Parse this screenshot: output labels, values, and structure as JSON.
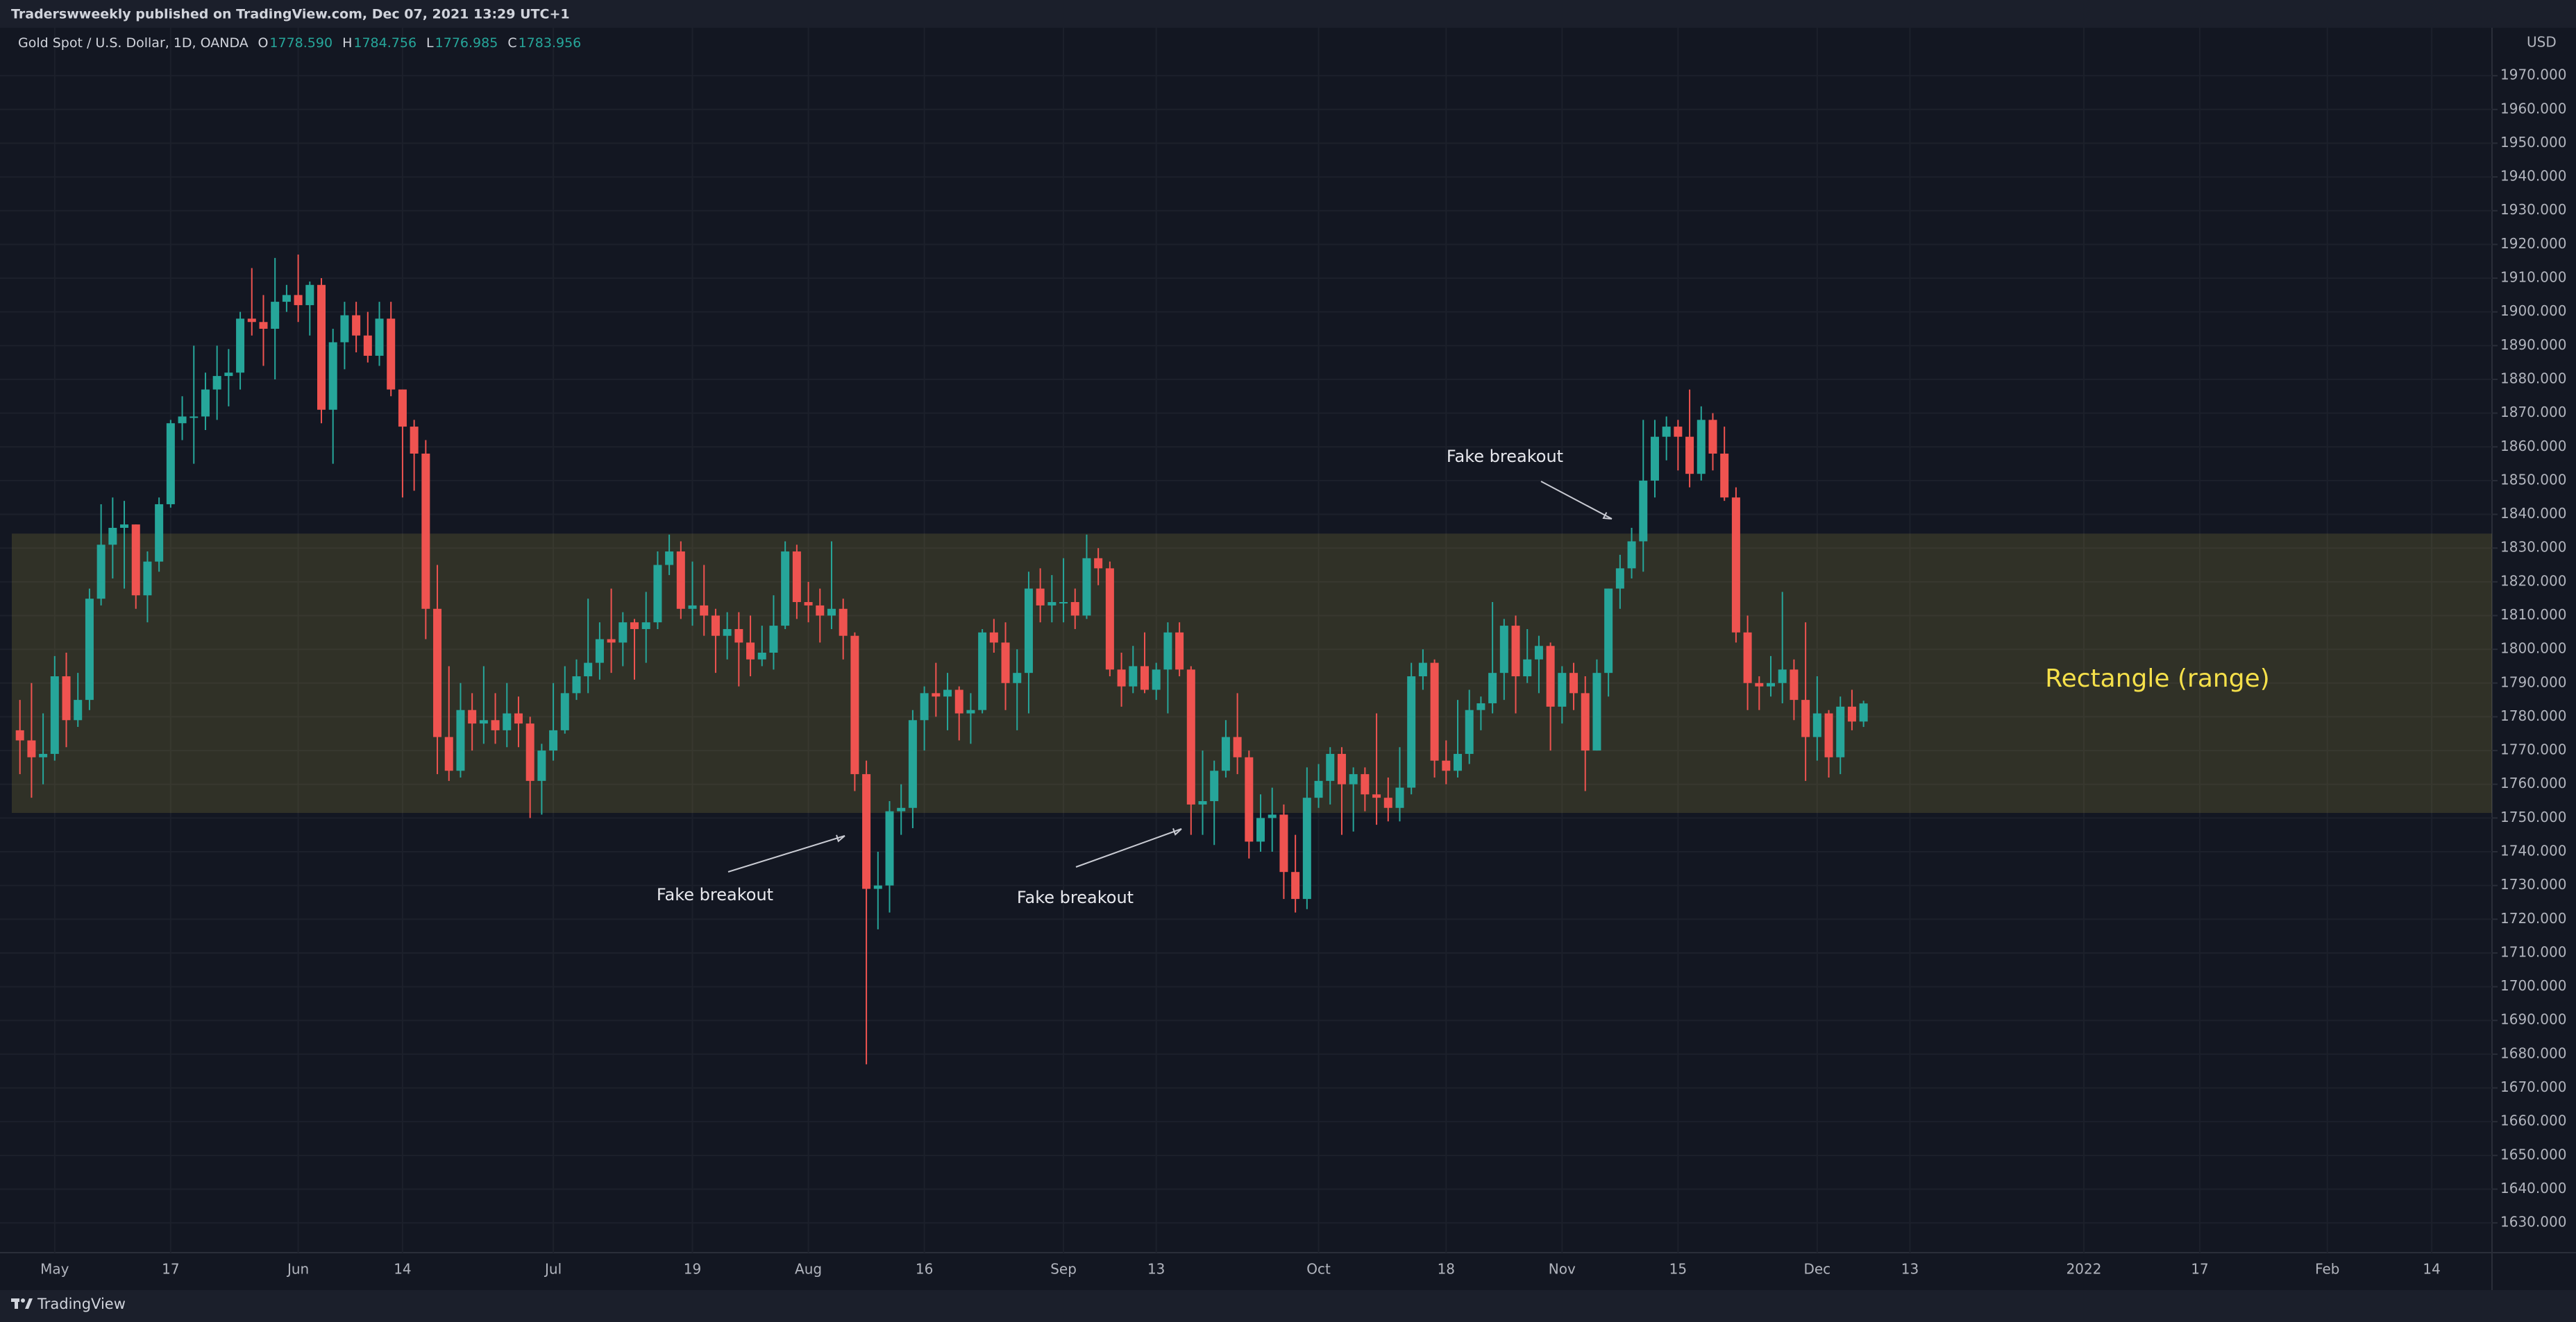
{
  "header": {
    "publisher": "Traderswweekly published on TradingView.com, Dec 07, 2021 13:29 UTC+1"
  },
  "chart_data": {
    "type": "candlestick",
    "title": "Gold Spot / U.S. Dollar, 1D, OANDA",
    "legend": {
      "o": "O",
      "open": "1778.590",
      "h": "H",
      "high": "1784.756",
      "l": "L",
      "low": "1776.985",
      "c": "C",
      "close": "1783.956"
    },
    "currency": "USD",
    "up_color": "#26a69a",
    "down_color": "#ef5350",
    "ohlc": [
      [
        1776,
        1785,
        1763,
        1773
      ],
      [
        1773,
        1790,
        1756,
        1768
      ],
      [
        1768,
        1781,
        1760,
        1769
      ],
      [
        1769,
        1798,
        1767,
        1792
      ],
      [
        1792,
        1799,
        1771,
        1779
      ],
      [
        1779,
        1793,
        1777,
        1785
      ],
      [
        1785,
        1818,
        1782,
        1815
      ],
      [
        1815,
        1843,
        1813,
        1831
      ],
      [
        1831,
        1845,
        1821,
        1836
      ],
      [
        1836,
        1844,
        1818,
        1837
      ],
      [
        1837,
        1837,
        1812,
        1816
      ],
      [
        1816,
        1829,
        1808,
        1826
      ],
      [
        1826,
        1845,
        1823,
        1843
      ],
      [
        1843,
        1868,
        1842,
        1867
      ],
      [
        1867,
        1875,
        1862,
        1869
      ],
      [
        1869,
        1890,
        1855,
        1869
      ],
      [
        1869,
        1882,
        1865,
        1877
      ],
      [
        1877,
        1890,
        1868,
        1881
      ],
      [
        1881,
        1889,
        1872,
        1882
      ],
      [
        1882,
        1900,
        1877,
        1898
      ],
      [
        1898,
        1913,
        1893,
        1897
      ],
      [
        1897,
        1905,
        1884,
        1895
      ],
      [
        1895,
        1916,
        1880,
        1903
      ],
      [
        1903,
        1908,
        1900,
        1905
      ],
      [
        1905,
        1917,
        1897,
        1902
      ],
      [
        1902,
        1909,
        1893,
        1908
      ],
      [
        1908,
        1910,
        1867,
        1871
      ],
      [
        1871,
        1895,
        1855,
        1891
      ],
      [
        1891,
        1903,
        1883,
        1899
      ],
      [
        1899,
        1903,
        1888,
        1893
      ],
      [
        1893,
        1900,
        1885,
        1887
      ],
      [
        1887,
        1903,
        1884,
        1898
      ],
      [
        1898,
        1903,
        1875,
        1877
      ],
      [
        1877,
        1877,
        1845,
        1866
      ],
      [
        1866,
        1868,
        1847,
        1858
      ],
      [
        1858,
        1862,
        1803,
        1812
      ],
      [
        1812,
        1825,
        1763,
        1774
      ],
      [
        1774,
        1795,
        1761,
        1764
      ],
      [
        1764,
        1790,
        1762,
        1782
      ],
      [
        1782,
        1787,
        1770,
        1778
      ],
      [
        1778,
        1795,
        1772,
        1779
      ],
      [
        1779,
        1787,
        1772,
        1776
      ],
      [
        1776,
        1790,
        1771,
        1781
      ],
      [
        1781,
        1786,
        1771,
        1778
      ],
      [
        1778,
        1780,
        1750,
        1761
      ],
      [
        1761,
        1772,
        1751,
        1770
      ],
      [
        1770,
        1790,
        1767,
        1776
      ],
      [
        1776,
        1795,
        1775,
        1787
      ],
      [
        1787,
        1797,
        1785,
        1792
      ],
      [
        1792,
        1815,
        1787,
        1796
      ],
      [
        1796,
        1808,
        1791,
        1803
      ],
      [
        1803,
        1818,
        1793,
        1802
      ],
      [
        1802,
        1811,
        1795,
        1808
      ],
      [
        1808,
        1809,
        1791,
        1806
      ],
      [
        1806,
        1817,
        1796,
        1808
      ],
      [
        1808,
        1829,
        1806,
        1825
      ],
      [
        1825,
        1834,
        1822,
        1829
      ],
      [
        1829,
        1832,
        1809,
        1812
      ],
      [
        1812,
        1826,
        1807,
        1813
      ],
      [
        1813,
        1825,
        1804,
        1810
      ],
      [
        1810,
        1812,
        1793,
        1804
      ],
      [
        1804,
        1811,
        1797,
        1806
      ],
      [
        1806,
        1811,
        1789,
        1802
      ],
      [
        1802,
        1810,
        1792,
        1797
      ],
      [
        1797,
        1807,
        1795,
        1799
      ],
      [
        1799,
        1816,
        1794,
        1807
      ],
      [
        1807,
        1832,
        1806,
        1829
      ],
      [
        1829,
        1831,
        1809,
        1814
      ],
      [
        1814,
        1820,
        1808,
        1813
      ],
      [
        1813,
        1818,
        1802,
        1810
      ],
      [
        1810,
        1832,
        1806,
        1812
      ],
      [
        1812,
        1815,
        1797,
        1804
      ],
      [
        1804,
        1805,
        1758,
        1763
      ],
      [
        1763,
        1767,
        1677,
        1729
      ],
      [
        1729,
        1740,
        1717,
        1730
      ],
      [
        1730,
        1755,
        1722,
        1752
      ],
      [
        1752,
        1760,
        1745,
        1753
      ],
      [
        1753,
        1782,
        1747,
        1779
      ],
      [
        1779,
        1789,
        1770,
        1787
      ],
      [
        1787,
        1796,
        1780,
        1786
      ],
      [
        1786,
        1793,
        1776,
        1788
      ],
      [
        1788,
        1789,
        1773,
        1781
      ],
      [
        1781,
        1787,
        1772,
        1782
      ],
      [
        1782,
        1806,
        1781,
        1805
      ],
      [
        1805,
        1809,
        1799,
        1802
      ],
      [
        1802,
        1808,
        1782,
        1790
      ],
      [
        1790,
        1800,
        1776,
        1793
      ],
      [
        1793,
        1823,
        1781,
        1818
      ],
      [
        1818,
        1824,
        1808,
        1813
      ],
      [
        1813,
        1822,
        1808,
        1814
      ],
      [
        1814,
        1827,
        1808,
        1814
      ],
      [
        1814,
        1818,
        1806,
        1810
      ],
      [
        1810,
        1834,
        1809,
        1827
      ],
      [
        1827,
        1830,
        1819,
        1824
      ],
      [
        1824,
        1826,
        1792,
        1794
      ],
      [
        1794,
        1799,
        1783,
        1789
      ],
      [
        1789,
        1801,
        1787,
        1795
      ],
      [
        1795,
        1805,
        1787,
        1788
      ],
      [
        1788,
        1796,
        1785,
        1794
      ],
      [
        1794,
        1808,
        1781,
        1805
      ],
      [
        1805,
        1808,
        1792,
        1794
      ],
      [
        1794,
        1795,
        1745,
        1754
      ],
      [
        1754,
        1770,
        1745,
        1755
      ],
      [
        1755,
        1767,
        1742,
        1764
      ],
      [
        1764,
        1779,
        1762,
        1774
      ],
      [
        1774,
        1787,
        1763,
        1768
      ],
      [
        1768,
        1770,
        1738,
        1743
      ],
      [
        1743,
        1757,
        1740,
        1750
      ],
      [
        1750,
        1759,
        1740,
        1751
      ],
      [
        1751,
        1754,
        1726,
        1734
      ],
      [
        1734,
        1745,
        1722,
        1726
      ],
      [
        1726,
        1765,
        1723,
        1756
      ],
      [
        1756,
        1766,
        1753,
        1761
      ],
      [
        1761,
        1771,
        1754,
        1769
      ],
      [
        1769,
        1771,
        1745,
        1760
      ],
      [
        1760,
        1765,
        1746,
        1763
      ],
      [
        1763,
        1765,
        1752,
        1757
      ],
      [
        1757,
        1781,
        1748,
        1756
      ],
      [
        1756,
        1762,
        1749,
        1753
      ],
      [
        1753,
        1771,
        1749,
        1759
      ],
      [
        1759,
        1796,
        1757,
        1792
      ],
      [
        1792,
        1800,
        1788,
        1796
      ],
      [
        1796,
        1797,
        1762,
        1767
      ],
      [
        1767,
        1773,
        1760,
        1764
      ],
      [
        1764,
        1785,
        1762,
        1769
      ],
      [
        1769,
        1788,
        1766,
        1782
      ],
      [
        1782,
        1786,
        1776,
        1784
      ],
      [
        1784,
        1814,
        1781,
        1793
      ],
      [
        1793,
        1809,
        1785,
        1807
      ],
      [
        1807,
        1810,
        1781,
        1792
      ],
      [
        1792,
        1806,
        1790,
        1797
      ],
      [
        1797,
        1804,
        1787,
        1801
      ],
      [
        1801,
        1802,
        1770,
        1783
      ],
      [
        1783,
        1795,
        1778,
        1793
      ],
      [
        1793,
        1796,
        1782,
        1787
      ],
      [
        1787,
        1792,
        1758,
        1770
      ],
      [
        1770,
        1797,
        1770,
        1793
      ],
      [
        1793,
        1818,
        1786,
        1818
      ],
      [
        1818,
        1828,
        1812,
        1824
      ],
      [
        1824,
        1836,
        1821,
        1832
      ],
      [
        1832,
        1868,
        1823,
        1850
      ],
      [
        1850,
        1868,
        1845,
        1863
      ],
      [
        1863,
        1869,
        1856,
        1866
      ],
      [
        1866,
        1868,
        1853,
        1863
      ],
      [
        1863,
        1877,
        1848,
        1852
      ],
      [
        1852,
        1872,
        1850,
        1868
      ],
      [
        1868,
        1870,
        1853,
        1858
      ],
      [
        1858,
        1866,
        1844,
        1845
      ],
      [
        1845,
        1848,
        1802,
        1805
      ],
      [
        1805,
        1810,
        1782,
        1790
      ],
      [
        1790,
        1792,
        1782,
        1789
      ],
      [
        1789,
        1798,
        1786,
        1790
      ],
      [
        1790,
        1817,
        1784,
        1794
      ],
      [
        1794,
        1797,
        1779,
        1785
      ],
      [
        1785,
        1808,
        1761,
        1774
      ],
      [
        1774,
        1792,
        1767,
        1781
      ],
      [
        1781,
        1782,
        1762,
        1768
      ],
      [
        1768,
        1786,
        1763,
        1783
      ],
      [
        1783,
        1788,
        1776,
        1778.59
      ],
      [
        1778.59,
        1784.756,
        1776.985,
        1783.956
      ]
    ],
    "xlim": [
      -0.7,
      213.2
    ],
    "xticks": [
      {
        "value": 3,
        "label": "May"
      },
      {
        "value": 13,
        "label": "17"
      },
      {
        "value": 24,
        "label": "Jun"
      },
      {
        "value": 33,
        "label": "14"
      },
      {
        "value": 46,
        "label": "Jul"
      },
      {
        "value": 58,
        "label": "19"
      },
      {
        "value": 68,
        "label": "Aug"
      },
      {
        "value": 78,
        "label": "16"
      },
      {
        "value": 90,
        "label": "Sep"
      },
      {
        "value": 98,
        "label": "13"
      },
      {
        "value": 112,
        "label": "Oct"
      },
      {
        "value": 123,
        "label": "18"
      },
      {
        "value": 133,
        "label": "Nov"
      },
      {
        "value": 143,
        "label": "15"
      },
      {
        "value": 155,
        "label": "Dec"
      },
      {
        "value": 163,
        "label": "13"
      },
      {
        "value": 178,
        "label": "2022"
      },
      {
        "value": 188,
        "label": "17"
      },
      {
        "value": 199,
        "label": "Feb"
      },
      {
        "value": 208,
        "label": "14"
      }
    ],
    "ylim": [
      1621.8,
      1983.6
    ],
    "yticks": [
      {
        "value": 1630,
        "label": "1630.000"
      },
      {
        "value": 1640,
        "label": "1640.000"
      },
      {
        "value": 1650,
        "label": "1650.000"
      },
      {
        "value": 1660,
        "label": "1660.000"
      },
      {
        "value": 1670,
        "label": "1670.000"
      },
      {
        "value": 1680,
        "label": "1680.000"
      },
      {
        "value": 1690,
        "label": "1690.000"
      },
      {
        "value": 1700,
        "label": "1700.000"
      },
      {
        "value": 1710,
        "label": "1710.000"
      },
      {
        "value": 1720,
        "label": "1720.000"
      },
      {
        "value": 1730,
        "label": "1730.000"
      },
      {
        "value": 1740,
        "label": "1740.000"
      },
      {
        "value": 1750,
        "label": "1750.000"
      },
      {
        "value": 1760,
        "label": "1760.000"
      },
      {
        "value": 1770,
        "label": "1770.000"
      },
      {
        "value": 1780,
        "label": "1780.000"
      },
      {
        "value": 1790,
        "label": "1790.000"
      },
      {
        "value": 1800,
        "label": "1800.000"
      },
      {
        "value": 1810,
        "label": "1810.000"
      },
      {
        "value": 1820,
        "label": "1820.000"
      },
      {
        "value": 1830,
        "label": "1830.000"
      },
      {
        "value": 1840,
        "label": "1840.000"
      },
      {
        "value": 1850,
        "label": "1850.000"
      },
      {
        "value": 1860,
        "label": "1860.000"
      },
      {
        "value": 1870,
        "label": "1870.000"
      },
      {
        "value": 1880,
        "label": "1880.000"
      },
      {
        "value": 1890,
        "label": "1890.000"
      },
      {
        "value": 1900,
        "label": "1900.000"
      },
      {
        "value": 1910,
        "label": "1910.000"
      },
      {
        "value": 1920,
        "label": "1920.000"
      },
      {
        "value": 1930,
        "label": "1930.000"
      },
      {
        "value": 1940,
        "label": "1940.000"
      },
      {
        "value": 1950,
        "label": "1950.000"
      },
      {
        "value": 1960,
        "label": "1960.000"
      },
      {
        "value": 1970,
        "label": "1970.000"
      }
    ],
    "grid": true,
    "zone": {
      "range": [
        1751.5,
        1834.3
      ],
      "label": "Rectangle (range)",
      "color": "#f5e04a"
    },
    "annotations": [
      "Fake breakout",
      "Fake breakout",
      "Fake breakout"
    ]
  },
  "footer": {
    "brand": "TradingView"
  }
}
